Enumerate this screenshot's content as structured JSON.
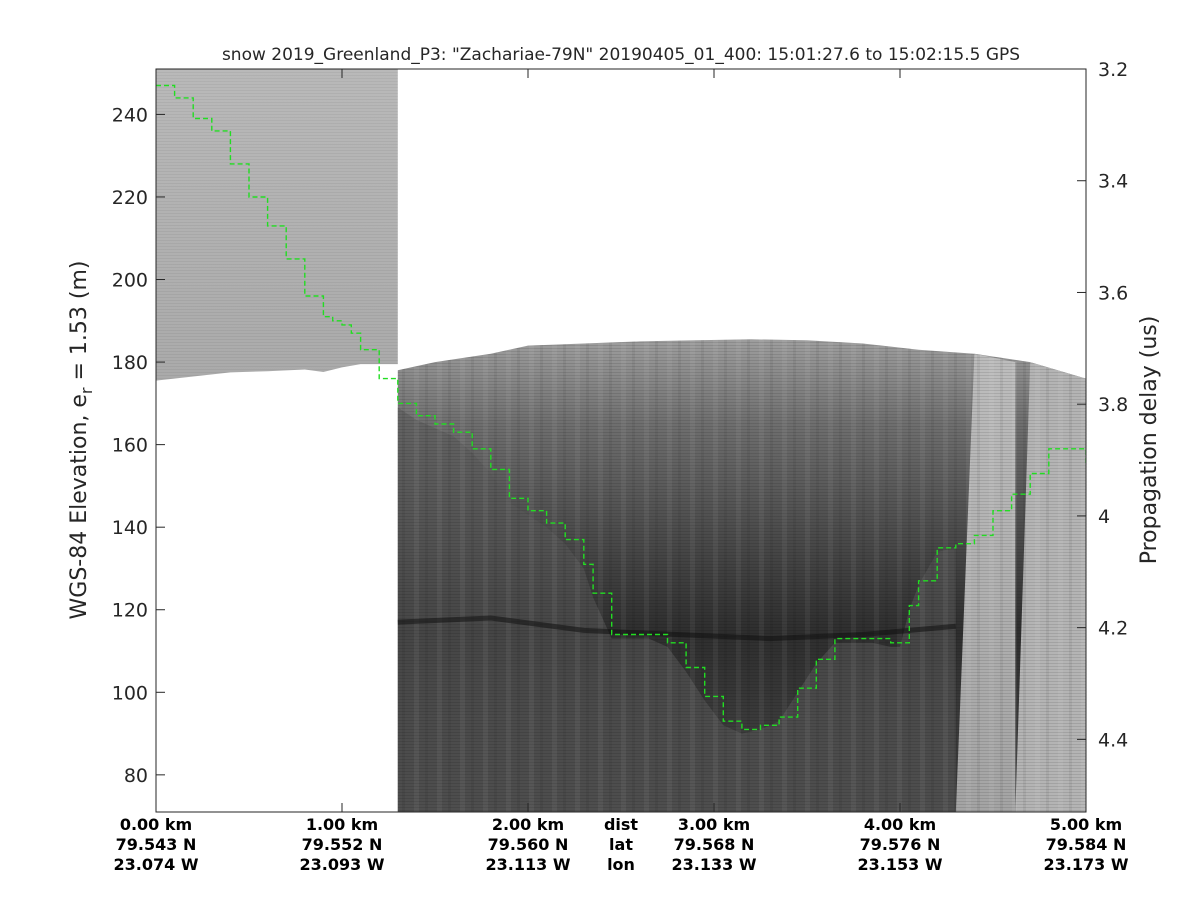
{
  "chart_data": {
    "type": "radargram",
    "title": "snow 2019_Greenland_P3: \"Zachariae-79N\"  20190405_01_400: 15:01:27.6 to 15:02:15.5 GPS",
    "ylabel_main": "WGS-84 Elevation, e",
    "ylabel_sub": "r",
    "ylabel_tail": " = 1.53 (m)",
    "y2label": "Propagation delay (us)",
    "ylim": [
      71,
      251
    ],
    "xlim": [
      0,
      5
    ],
    "yticks": [
      80,
      100,
      120,
      140,
      160,
      180,
      200,
      220,
      240
    ],
    "y2ticks": [
      {
        "label": "3.2",
        "value": 3.2
      },
      {
        "label": "3.4",
        "value": 3.4
      },
      {
        "label": "3.6",
        "value": 3.6
      },
      {
        "label": "3.8",
        "value": 3.8
      },
      {
        "label": "4",
        "value": 4.0
      },
      {
        "label": "4.2",
        "value": 4.2
      },
      {
        "label": "4.4",
        "value": 4.4
      }
    ],
    "delay_range": [
      3.2,
      4.53
    ],
    "xticks": [
      {
        "dist": "0.00 km",
        "lat": "79.543 N",
        "lon": "23.074 W",
        "x": 0.0
      },
      {
        "dist": "1.00 km",
        "lat": "79.552 N",
        "lon": "23.093 W",
        "x": 1.0
      },
      {
        "dist": "2.00 km",
        "lat": "79.560 N",
        "lon": "23.113 W",
        "x": 2.0
      },
      {
        "dist": "3.00 km",
        "lat": "79.568 N",
        "lon": "23.133 W",
        "x": 3.0
      },
      {
        "dist": "4.00 km",
        "lat": "79.576 N",
        "lon": "23.153 W",
        "x": 4.0
      },
      {
        "dist": "5.00 km",
        "lat": "79.584 N",
        "lon": "23.173 W",
        "x": 5.0
      }
    ],
    "row_labels": {
      "dist": "dist",
      "lat": "lat",
      "lon": "lon"
    },
    "row_labels_x": 2.5,
    "surface_green": {
      "color": "#22dd22",
      "x": [
        0.0,
        0.1,
        0.2,
        0.3,
        0.4,
        0.5,
        0.6,
        0.7,
        0.8,
        0.9,
        0.95,
        1.0,
        1.05,
        1.1,
        1.2,
        1.3,
        1.4,
        1.5,
        1.6,
        1.7,
        1.8,
        1.9,
        2.0,
        2.1,
        2.2,
        2.3,
        2.35,
        2.45,
        2.55,
        2.65,
        2.75,
        2.85,
        2.95,
        3.05,
        3.15,
        3.25,
        3.35,
        3.45,
        3.55,
        3.65,
        3.75,
        3.85,
        3.95,
        4.0,
        4.05,
        4.1,
        4.2,
        4.3,
        4.4,
        4.5,
        4.6,
        4.7,
        4.8,
        4.9,
        5.0
      ],
      "y": [
        247,
        244,
        239,
        236,
        228,
        220,
        213,
        205,
        196,
        191,
        190,
        189,
        187,
        183,
        176,
        170,
        167,
        165,
        163,
        159,
        154,
        147,
        144,
        141,
        137,
        131,
        124,
        114,
        114,
        114,
        112,
        106,
        99,
        93,
        91,
        92,
        94,
        101,
        108,
        113,
        113,
        113,
        112,
        112,
        121,
        127,
        135,
        136,
        138,
        144,
        148,
        153,
        159,
        159,
        155
      ]
    },
    "surface_top": {
      "x": [
        1.3,
        1.5,
        1.8,
        2.0,
        2.3,
        2.6,
        2.9,
        3.2,
        3.5,
        3.8,
        4.1,
        4.4,
        4.7,
        5.0
      ],
      "y": [
        178,
        180,
        182,
        184,
        184.5,
        185,
        185.3,
        185.5,
        185.3,
        184.5,
        183,
        182,
        180,
        176
      ]
    },
    "left_block_bottom": {
      "x": [
        0.0,
        0.2,
        0.4,
        0.6,
        0.8,
        0.9,
        1.0,
        1.1,
        1.3
      ],
      "y": [
        175.5,
        176.5,
        177.5,
        177.8,
        178.2,
        177.6,
        178.7,
        179.5,
        179.5
      ]
    },
    "bright_band_x": [
      4.3,
      4.62
    ],
    "dark_band": {
      "x_start": 1.3,
      "x_end": 4.3,
      "y": [
        117,
        118,
        115,
        114,
        113,
        114,
        116
      ]
    }
  }
}
